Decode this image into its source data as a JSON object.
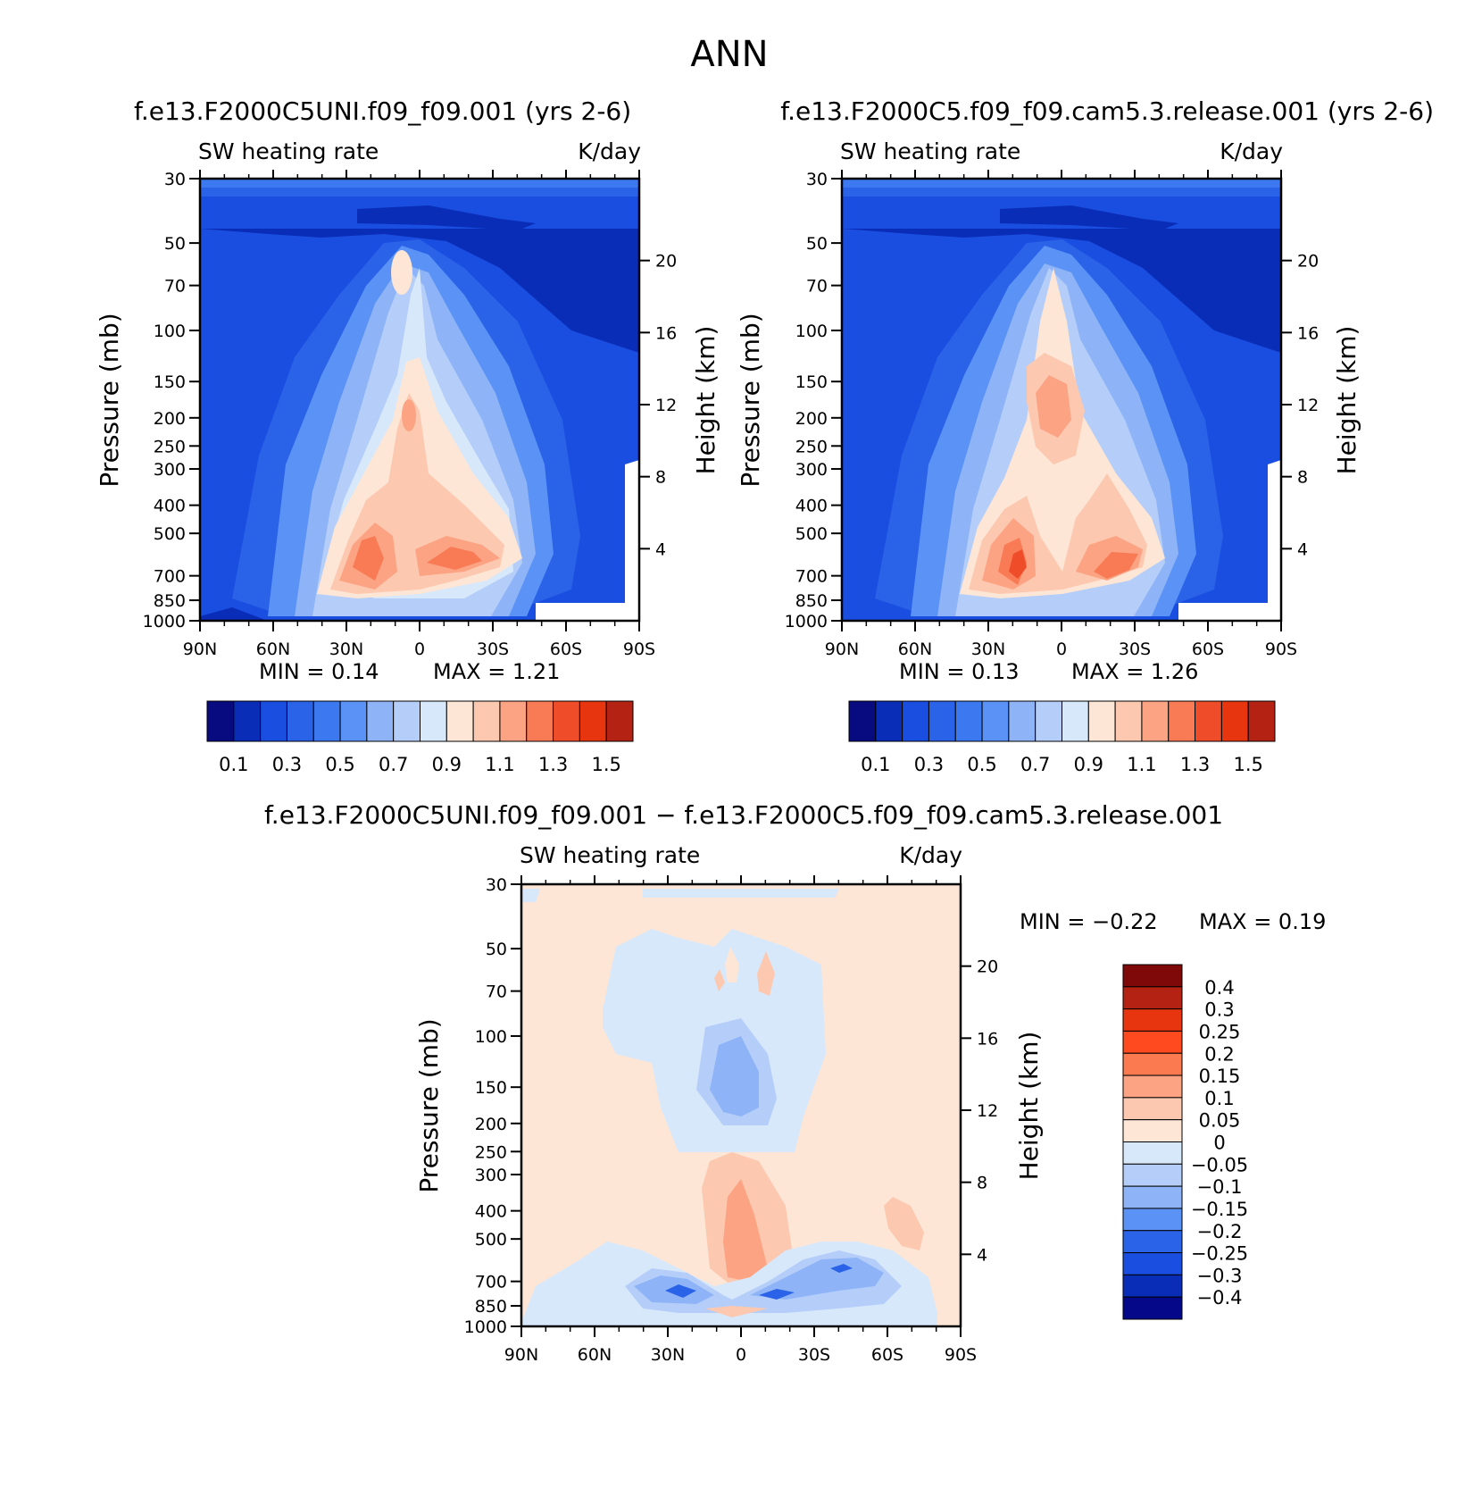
{
  "figure": {
    "season": "ANN",
    "panels": [
      {
        "title": "f.e13.F2000C5UNI.f09_f09.001 (yrs 2-6)",
        "left_label": "SW heating rate",
        "right_label": "K/day",
        "min_label": "MIN = 0.14",
        "max_label": "MAX = 1.21"
      },
      {
        "title": "f.e13.F2000C5.f09_f09.cam5.3.release.001 (yrs 2-6)",
        "left_label": "SW heating rate",
        "right_label": "K/day",
        "min_label": "MIN = 0.13",
        "max_label": "MAX = 1.26"
      },
      {
        "title": "f.e13.F2000C5UNI.f09_f09.001 − f.e13.F2000C5.f09_f09.cam5.3.release.001",
        "left_label": "SW heating rate",
        "right_label": "K/day",
        "min_label": "MIN = −0.22",
        "max_label": "MAX = 0.19"
      }
    ]
  },
  "chart_data": [
    {
      "type": "heatmap",
      "title": "f.e13.F2000C5UNI.f09_f09.001 (yrs 2-6)",
      "variable": "SW heating rate",
      "units": "K/day",
      "xlabel": "",
      "ylabel": "Pressure (mb)",
      "y2label": "Height (km)",
      "x_ticks": [
        "90N",
        "60N",
        "30N",
        "0",
        "30S",
        "60S",
        "90S"
      ],
      "x_range": [
        90,
        -90
      ],
      "y_ticks": [
        "30",
        "50",
        "70",
        "100",
        "150",
        "200",
        "250",
        "300",
        "400",
        "500",
        "700",
        "850",
        "1000"
      ],
      "y_range": [
        1000,
        30
      ],
      "y_scale": "log",
      "y2_ticks": [
        "20",
        "16",
        "12",
        "8",
        "4"
      ],
      "contour_levels": [
        0.1,
        0.2,
        0.3,
        0.4,
        0.5,
        0.6,
        0.7,
        0.8,
        0.9,
        1.0,
        1.1,
        1.2,
        1.3,
        1.4,
        1.5
      ],
      "colorbar_labels": [
        "0.1",
        "0.3",
        "0.5",
        "0.7",
        "0.9",
        "1.1",
        "1.3",
        "1.5"
      ],
      "min": 0.14,
      "max": 1.21
    },
    {
      "type": "heatmap",
      "title": "f.e13.F2000C5.f09_f09.cam5.3.release.001 (yrs 2-6)",
      "variable": "SW heating rate",
      "units": "K/day",
      "xlabel": "",
      "ylabel": "Pressure (mb)",
      "y2label": "Height (km)",
      "x_ticks": [
        "90N",
        "60N",
        "30N",
        "0",
        "30S",
        "60S",
        "90S"
      ],
      "x_range": [
        90,
        -90
      ],
      "y_ticks": [
        "30",
        "50",
        "70",
        "100",
        "150",
        "200",
        "250",
        "300",
        "400",
        "500",
        "700",
        "850",
        "1000"
      ],
      "y_range": [
        1000,
        30
      ],
      "y_scale": "log",
      "y2_ticks": [
        "20",
        "16",
        "12",
        "8",
        "4"
      ],
      "contour_levels": [
        0.1,
        0.2,
        0.3,
        0.4,
        0.5,
        0.6,
        0.7,
        0.8,
        0.9,
        1.0,
        1.1,
        1.2,
        1.3,
        1.4,
        1.5
      ],
      "colorbar_labels": [
        "0.1",
        "0.3",
        "0.5",
        "0.7",
        "0.9",
        "1.1",
        "1.3",
        "1.5"
      ],
      "min": 0.13,
      "max": 1.26
    },
    {
      "type": "heatmap",
      "title": "f.e13.F2000C5UNI.f09_f09.001 − f.e13.F2000C5.f09_f09.cam5.3.release.001",
      "variable": "SW heating rate",
      "units": "K/day",
      "xlabel": "",
      "ylabel": "Pressure (mb)",
      "y2label": "Height (km)",
      "x_ticks": [
        "90N",
        "60N",
        "30N",
        "0",
        "30S",
        "60S",
        "90S"
      ],
      "x_range": [
        90,
        -90
      ],
      "y_ticks": [
        "30",
        "50",
        "70",
        "100",
        "150",
        "200",
        "250",
        "300",
        "400",
        "500",
        "700",
        "850",
        "1000"
      ],
      "y_range": [
        1000,
        30
      ],
      "y_scale": "log",
      "y2_ticks": [
        "20",
        "16",
        "12",
        "8",
        "4"
      ],
      "contour_levels": [
        -0.4,
        -0.3,
        -0.25,
        -0.2,
        -0.15,
        -0.1,
        -0.05,
        0,
        0.05,
        0.1,
        0.15,
        0.2,
        0.25,
        0.3,
        0.4
      ],
      "colorbar_labels": [
        "0.4",
        "0.3",
        "0.25",
        "0.2",
        "0.15",
        "0.1",
        "0.05",
        "0",
        "−0.05",
        "−0.1",
        "−0.15",
        "−0.2",
        "−0.25",
        "−0.3",
        "−0.4"
      ],
      "min": -0.22,
      "max": 0.19
    }
  ]
}
